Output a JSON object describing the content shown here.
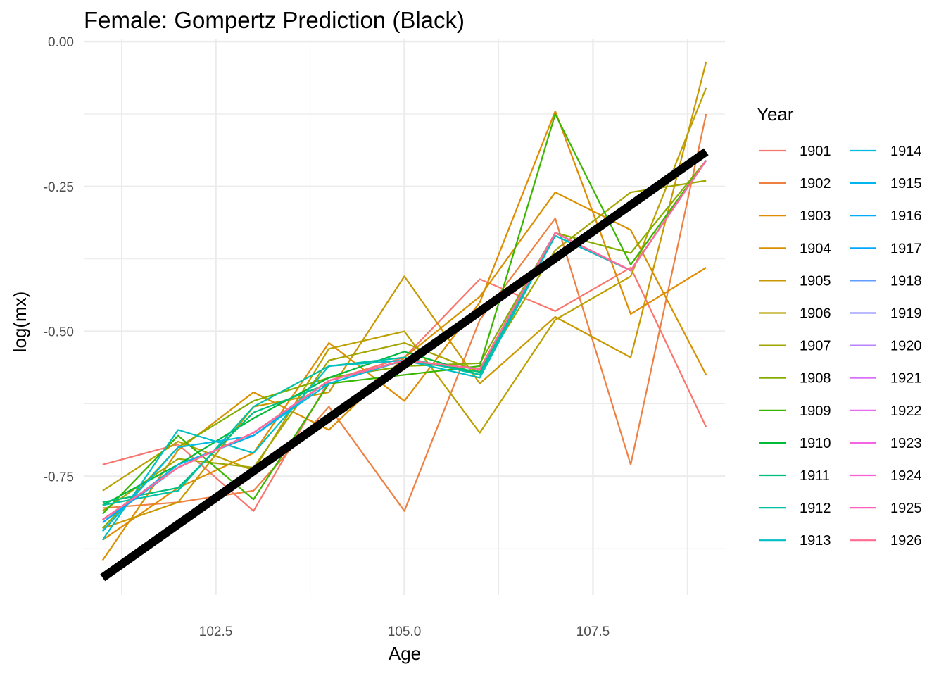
{
  "chart_data": {
    "type": "line",
    "title": "Female: Gompertz Prediction (Black)",
    "xlabel": "Age",
    "ylabel": "log(mx)",
    "xlim": [
      100.75,
      109.25
    ],
    "ylim": [
      -0.955,
      0.005
    ],
    "x_ticks": [
      102.5,
      105.0,
      107.5
    ],
    "x_tick_labels": [
      "102.5",
      "105.0",
      "107.5"
    ],
    "y_ticks": [
      0.0,
      -0.25,
      -0.5,
      -0.75
    ],
    "y_tick_labels": [
      "0.00",
      "-0.25",
      "-0.50",
      "-0.75"
    ],
    "grid": true,
    "legend": {
      "title": "Year",
      "placement": "right",
      "columns": 2
    },
    "x": [
      101,
      102,
      103,
      104,
      105,
      106,
      107,
      108,
      109
    ],
    "series": [
      {
        "name": "1901",
        "color": "#F8766D",
        "values": [
          -0.73,
          -0.695,
          -0.81,
          -0.585,
          -0.545,
          -0.41,
          -0.465,
          -0.39,
          -0.665
        ]
      },
      {
        "name": "1902",
        "color": "#EE8042",
        "values": [
          -0.805,
          -0.795,
          -0.775,
          -0.63,
          -0.81,
          -0.48,
          -0.305,
          -0.73,
          -0.125
        ]
      },
      {
        "name": "1903",
        "color": "#E08B00",
        "values": [
          -0.86,
          -0.77,
          -0.71,
          -0.52,
          -0.62,
          -0.45,
          -0.12,
          -0.47,
          -0.39
        ]
      },
      {
        "name": "1904",
        "color": "#D89000",
        "values": [
          -0.895,
          -0.705,
          -0.605,
          -0.67,
          -0.545,
          -0.44,
          -0.26,
          -0.325,
          -0.575
        ]
      },
      {
        "name": "1905",
        "color": "#C99800",
        "values": [
          -0.84,
          -0.795,
          -0.63,
          -0.605,
          -0.405,
          -0.59,
          -0.475,
          -0.545,
          -0.035
        ]
      },
      {
        "name": "1906",
        "color": "#BBA000",
        "values": [
          -0.775,
          -0.69,
          -0.74,
          -0.53,
          -0.5,
          -0.675,
          -0.48,
          -0.405,
          -0.08
        ]
      },
      {
        "name": "1907",
        "color": "#A3A500",
        "values": [
          -0.81,
          -0.72,
          -0.735,
          -0.55,
          -0.52,
          -0.57,
          -0.36,
          -0.26,
          -0.24
        ]
      },
      {
        "name": "1908",
        "color": "#85AD00",
        "values": [
          -0.84,
          -0.7,
          -0.62,
          -0.58,
          -0.56,
          -0.555,
          -0.33,
          -0.365,
          -0.205
        ]
      },
      {
        "name": "1909",
        "color": "#39B600",
        "values": [
          -0.815,
          -0.68,
          -0.79,
          -0.59,
          -0.575,
          -0.56,
          -0.125,
          -0.385,
          -0.205
        ]
      },
      {
        "name": "1910",
        "color": "#00BA38",
        "values": [
          -0.8,
          -0.73,
          -0.65,
          -0.58,
          -0.535,
          -0.575,
          -0.33,
          -0.395,
          -0.205
        ]
      },
      {
        "name": "1911",
        "color": "#00BF7D",
        "values": [
          -0.795,
          -0.77,
          -0.64,
          -0.59,
          -0.55,
          -0.57,
          -0.335,
          -0.395,
          -0.205
        ]
      },
      {
        "name": "1912",
        "color": "#00C1A3",
        "values": [
          -0.8,
          -0.775,
          -0.63,
          -0.56,
          -0.545,
          -0.575,
          -0.33,
          -0.395,
          -0.205
        ]
      },
      {
        "name": "1913",
        "color": "#00BFC4",
        "values": [
          -0.86,
          -0.67,
          -0.71,
          -0.56,
          -0.55,
          -0.58,
          -0.335,
          -0.395,
          -0.205
        ]
      },
      {
        "name": "1914",
        "color": "#00BAE0",
        "values": [
          -0.845,
          -0.7,
          -0.68,
          -0.59,
          -0.55,
          -0.565,
          -0.33,
          -0.395,
          -0.205
        ]
      },
      {
        "name": "1915",
        "color": "#00B4EF",
        "values": [
          -0.83,
          -0.73,
          -0.68,
          -0.585,
          -0.55,
          -0.565,
          -0.33,
          -0.395,
          -0.205
        ]
      },
      {
        "name": "1916",
        "color": "#00ABFD",
        "values": [
          -0.83,
          -0.735,
          -0.675,
          -0.585,
          -0.55,
          -0.565,
          -0.33,
          -0.395,
          -0.205
        ]
      },
      {
        "name": "1917",
        "color": "#00A5FF",
        "values": [
          -0.825,
          -0.735,
          -0.675,
          -0.585,
          -0.55,
          -0.565,
          -0.33,
          -0.395,
          -0.205
        ]
      },
      {
        "name": "1918",
        "color": "#619CFF",
        "values": [
          -0.825,
          -0.735,
          -0.675,
          -0.585,
          -0.55,
          -0.565,
          -0.33,
          -0.395,
          -0.205
        ]
      },
      {
        "name": "1919",
        "color": "#8F91FF",
        "values": [
          -0.825,
          -0.735,
          -0.675,
          -0.585,
          -0.55,
          -0.565,
          -0.33,
          -0.395,
          -0.205
        ]
      },
      {
        "name": "1920",
        "color": "#B983FF",
        "values": [
          -0.825,
          -0.735,
          -0.675,
          -0.585,
          -0.55,
          -0.565,
          -0.33,
          -0.395,
          -0.205
        ]
      },
      {
        "name": "1921",
        "color": "#DB72FB",
        "values": [
          -0.825,
          -0.735,
          -0.675,
          -0.585,
          -0.55,
          -0.565,
          -0.33,
          -0.395,
          -0.205
        ]
      },
      {
        "name": "1922",
        "color": "#E76BF3",
        "values": [
          -0.825,
          -0.735,
          -0.675,
          -0.585,
          -0.55,
          -0.565,
          -0.33,
          -0.395,
          -0.205
        ]
      },
      {
        "name": "1923",
        "color": "#F464E2",
        "values": [
          -0.825,
          -0.735,
          -0.675,
          -0.585,
          -0.55,
          -0.565,
          -0.33,
          -0.395,
          -0.205
        ]
      },
      {
        "name": "1924",
        "color": "#FB61D7",
        "values": [
          -0.825,
          -0.735,
          -0.675,
          -0.585,
          -0.55,
          -0.565,
          -0.33,
          -0.395,
          -0.205
        ]
      },
      {
        "name": "1925",
        "color": "#FF62BC",
        "values": [
          -0.825,
          -0.735,
          -0.675,
          -0.585,
          -0.55,
          -0.565,
          -0.33,
          -0.395,
          -0.205
        ]
      },
      {
        "name": "1926",
        "color": "#FF6C91",
        "values": [
          -0.825,
          -0.735,
          -0.675,
          -0.585,
          -0.55,
          -0.565,
          -0.33,
          -0.395,
          -0.205
        ]
      }
    ],
    "prediction": {
      "color": "#000000",
      "x": [
        101,
        109
      ],
      "values": [
        -0.925,
        -0.19
      ]
    }
  }
}
